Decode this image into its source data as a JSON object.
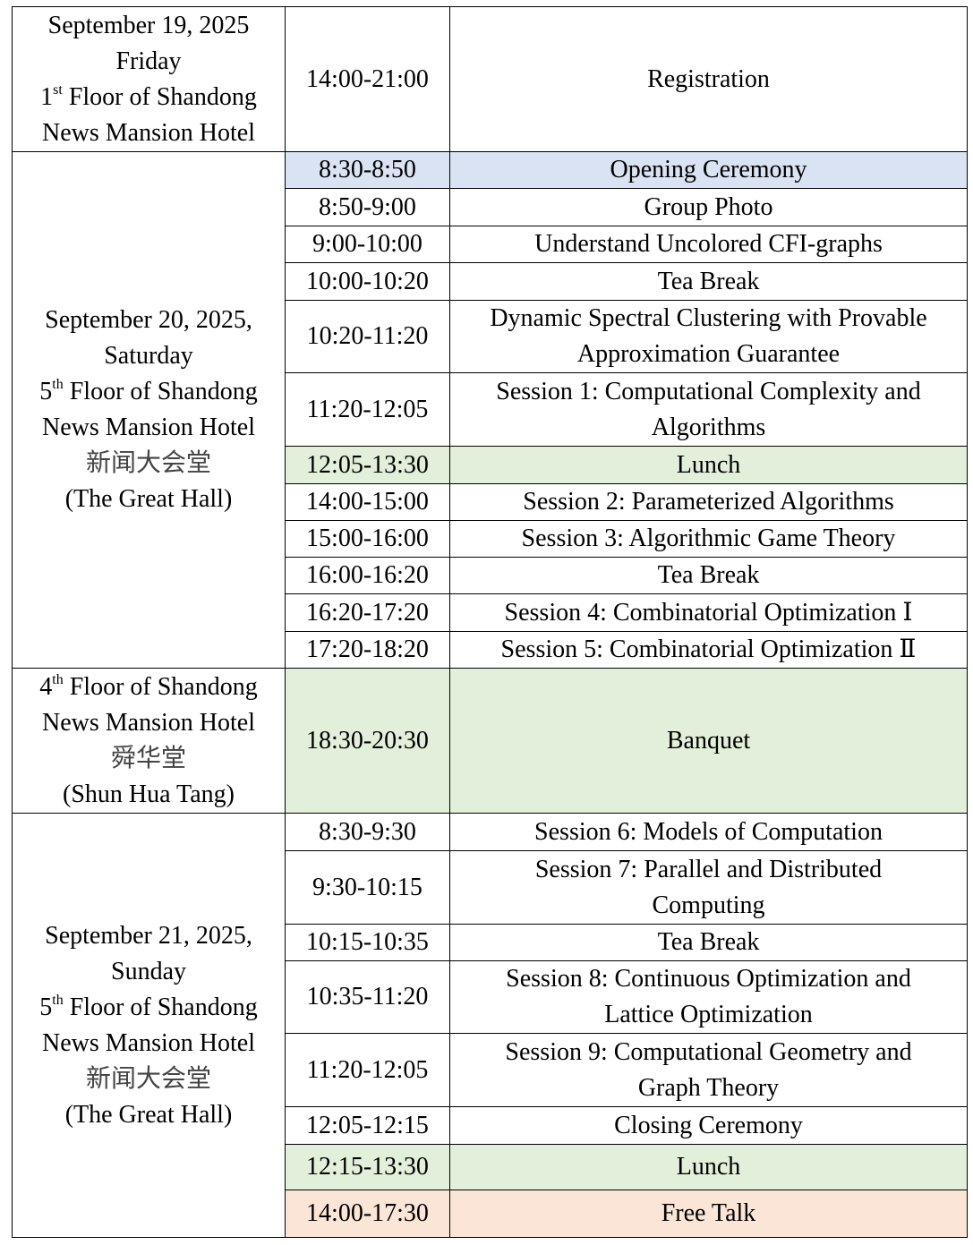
{
  "colors": {
    "opening": "#dae3f3",
    "meal": "#e2efda",
    "free": "#fbe5d6",
    "default": "#ffffff"
  },
  "days": [
    {
      "location_lines": [
        {
          "text": "September 19, 2025"
        },
        {
          "text": "Friday"
        },
        {
          "num": "1",
          "sup": "st",
          "text": " Floor of Shandong"
        },
        {
          "text": "News Mansion Hotel"
        }
      ],
      "sessions": [
        {
          "time": "14:00-21:00",
          "event": "Registration",
          "highlight": "default"
        }
      ]
    },
    {
      "location_lines": [
        {
          "text": "September 20, 2025,"
        },
        {
          "text": "Saturday"
        },
        {
          "num": "5",
          "sup": "th",
          "text": " Floor of Shandong"
        },
        {
          "text": "News Mansion Hotel"
        },
        {
          "text": "新闻大会堂",
          "cjk": true
        },
        {
          "text": "(The Great Hall)"
        }
      ],
      "sessions": [
        {
          "time": "8:30-8:50",
          "event": "Opening Ceremony",
          "highlight": "opening"
        },
        {
          "time": "8:50-9:00",
          "event": "Group Photo",
          "highlight": "default"
        },
        {
          "time": "9:00-10:00",
          "event": "Understand Uncolored CFI-graphs",
          "highlight": "default"
        },
        {
          "time": "10:00-10:20",
          "event": "Tea Break",
          "highlight": "default"
        },
        {
          "time": "10:20-11:20",
          "event": "Dynamic Spectral Clustering with Provable\nApproximation Guarantee",
          "highlight": "default"
        },
        {
          "time": "11:20-12:05",
          "event": "Session 1: Computational Complexity and\nAlgorithms",
          "highlight": "default"
        },
        {
          "time": "12:05-13:30",
          "event": "Lunch",
          "highlight": "meal"
        },
        {
          "time": "14:00-15:00",
          "event": "Session 2: Parameterized Algorithms",
          "highlight": "default"
        },
        {
          "time": "15:00-16:00",
          "event": "Session 3: Algorithmic Game Theory",
          "highlight": "default"
        },
        {
          "time": "16:00-16:20",
          "event": "Tea Break",
          "highlight": "default"
        },
        {
          "time": "16:20-17:20",
          "event": "Session 4: Combinatorial Optimization Ⅰ",
          "highlight": "default"
        },
        {
          "time": "17:20-18:20",
          "event": "Session 5: Combinatorial Optimization  Ⅱ",
          "highlight": "default"
        }
      ]
    },
    {
      "location_lines": [
        {
          "num": "4",
          "sup": "th",
          "text": " Floor of Shandong"
        },
        {
          "text": "News Mansion Hotel"
        },
        {
          "text": "舜华堂",
          "cjk": true
        },
        {
          "text": "(Shun Hua Tang)"
        }
      ],
      "sessions": [
        {
          "time": "18:30-20:30",
          "event": "Banquet",
          "highlight": "meal"
        }
      ]
    },
    {
      "location_lines": [
        {
          "text": "September 21, 2025,"
        },
        {
          "text": "Sunday"
        },
        {
          "num": "5",
          "sup": "th",
          "text": " Floor of Shandong"
        },
        {
          "text": "News Mansion Hotel"
        },
        {
          "text": "新闻大会堂",
          "cjk": true
        },
        {
          "text": "(The Great Hall)"
        }
      ],
      "sessions": [
        {
          "time": "8:30-9:30",
          "event": "Session 6: Models of Computation",
          "highlight": "default"
        },
        {
          "time": "9:30-10:15",
          "event": "Session 7: Parallel and Distributed\nComputing",
          "highlight": "default"
        },
        {
          "time": "10:15-10:35",
          "event": "Tea Break",
          "highlight": "default"
        },
        {
          "time": "10:35-11:20",
          "event": "Session 8: Continuous Optimization and\nLattice Optimization",
          "highlight": "default"
        },
        {
          "time": "11:20-12:05",
          "event": "Session 9: Computational Geometry and\nGraph Theory",
          "highlight": "default"
        },
        {
          "time": "12:05-12:15",
          "event": "Closing Ceremony",
          "highlight": "default"
        },
        {
          "time": "12:15-13:30",
          "event": "Lunch",
          "highlight": "meal"
        },
        {
          "time": "14:00-17:30",
          "event": "Free Talk",
          "highlight": "free"
        }
      ]
    }
  ]
}
